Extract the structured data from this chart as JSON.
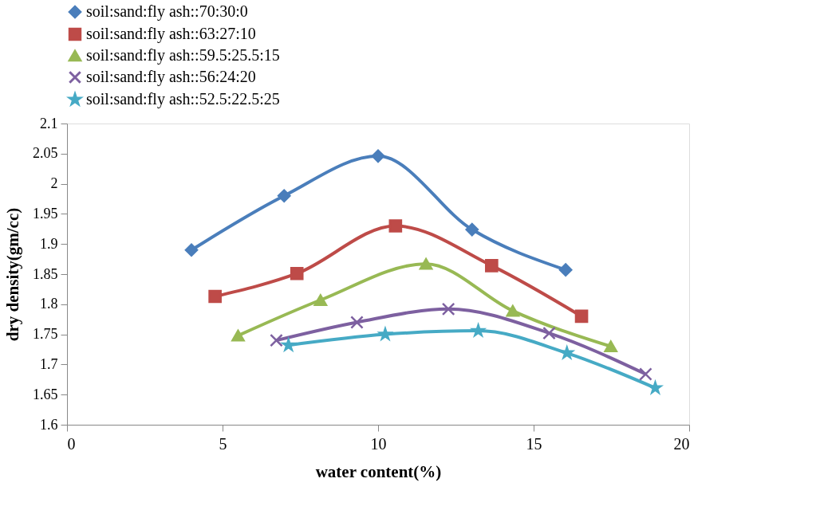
{
  "chart_data": {
    "type": "line",
    "xlabel": "water content(%)",
    "ylabel": "dry density(gm/cc)",
    "xlim": [
      0,
      20
    ],
    "xticks": [
      0,
      5,
      10,
      15,
      20
    ],
    "ylim": [
      1.6,
      2.1
    ],
    "yticks": [
      1.6,
      1.65,
      1.7,
      1.75,
      1.8,
      1.85,
      1.9,
      1.95,
      2,
      2.05,
      2.1
    ],
    "grid": false,
    "legend": "top",
    "line_style": "solid",
    "series": [
      {
        "name": "soil:sand:fly ash::70:30:0",
        "color": "#4a7ebb",
        "marker": "diamond",
        "x": [
          4.0,
          6.98,
          10.0,
          13.02,
          16.03
        ],
        "values": [
          1.89,
          1.98,
          2.046,
          1.924,
          1.857
        ]
      },
      {
        "name": "soil:sand:fly ash::63:27:10",
        "color": "#be4b48",
        "marker": "square",
        "x": [
          4.76,
          7.39,
          10.56,
          13.65,
          16.54
        ],
        "values": [
          1.813,
          1.851,
          1.93,
          1.864,
          1.78
        ]
      },
      {
        "name": "soil:sand:fly ash::59.5:25.5:15",
        "color": "#98b954",
        "marker": "triangle",
        "x": [
          5.5,
          8.15,
          11.54,
          14.33,
          17.48
        ],
        "values": [
          1.748,
          1.807,
          1.867,
          1.789,
          1.73
        ]
      },
      {
        "name": "soil:sand:fly ash::56:24:20",
        "color": "#7d60a0",
        "marker": "cross",
        "x": [
          6.73,
          9.32,
          12.26,
          15.5,
          18.6
        ],
        "values": [
          1.74,
          1.77,
          1.792,
          1.752,
          1.684
        ]
      },
      {
        "name": "soil:sand:fly ash::52.5:22.5:25",
        "color": "#46aac5",
        "marker": "star",
        "x": [
          7.12,
          10.23,
          13.22,
          16.07,
          18.91
        ],
        "values": [
          1.732,
          1.75,
          1.756,
          1.719,
          1.661
        ]
      }
    ]
  }
}
